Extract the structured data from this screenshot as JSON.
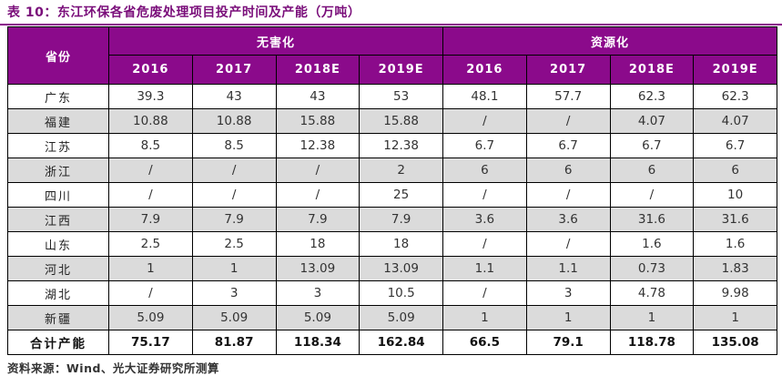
{
  "title": "表 10：东江环保各省危废处理项目投产时间及产能（万吨）",
  "source_note": "资料来源：Wind、光大证券研究所测算",
  "colors": {
    "header_bg": "#8B0A8B",
    "title_text": "#7A0E7A",
    "stripe_row": "#DBDBDB",
    "grid_border": "#000000"
  },
  "table": {
    "province_header": "省份",
    "groups": [
      "无害化",
      "资源化"
    ],
    "year_headers": [
      "2016",
      "2017",
      "2018E",
      "2019E",
      "2016",
      "2017",
      "2018E",
      "2019E"
    ],
    "rows": [
      {
        "province": "广东",
        "values": [
          "39.3",
          "43",
          "43",
          "53",
          "48.1",
          "57.7",
          "62.3",
          "62.3"
        ]
      },
      {
        "province": "福建",
        "values": [
          "10.88",
          "10.88",
          "15.88",
          "15.88",
          "/",
          "/",
          "4.07",
          "4.07"
        ]
      },
      {
        "province": "江苏",
        "values": [
          "8.5",
          "8.5",
          "12.38",
          "12.38",
          "6.7",
          "6.7",
          "6.7",
          "6.7"
        ]
      },
      {
        "province": "浙江",
        "values": [
          "/",
          "/",
          "/",
          "2",
          "6",
          "6",
          "6",
          "6"
        ]
      },
      {
        "province": "四川",
        "values": [
          "/",
          "/",
          "/",
          "25",
          "/",
          "/",
          "/",
          "10"
        ]
      },
      {
        "province": "江西",
        "values": [
          "7.9",
          "7.9",
          "7.9",
          "7.9",
          "3.6",
          "3.6",
          "31.6",
          "31.6"
        ]
      },
      {
        "province": "山东",
        "values": [
          "2.5",
          "2.5",
          "18",
          "18",
          "/",
          "/",
          "1.6",
          "1.6"
        ]
      },
      {
        "province": "河北",
        "values": [
          "1",
          "1",
          "13.09",
          "13.09",
          "1.1",
          "1.1",
          "0.73",
          "1.83"
        ]
      },
      {
        "province": "湖北",
        "values": [
          "/",
          "3",
          "3",
          "10.5",
          "/",
          "3",
          "4.78",
          "9.98"
        ]
      },
      {
        "province": "新疆",
        "values": [
          "5.09",
          "5.09",
          "5.09",
          "5.09",
          "1",
          "1",
          "1",
          "1"
        ]
      }
    ],
    "total_row": {
      "label": "合计产能",
      "values": [
        "75.17",
        "81.87",
        "118.34",
        "162.84",
        "66.5",
        "79.1",
        "118.78",
        "135.08"
      ]
    }
  }
}
